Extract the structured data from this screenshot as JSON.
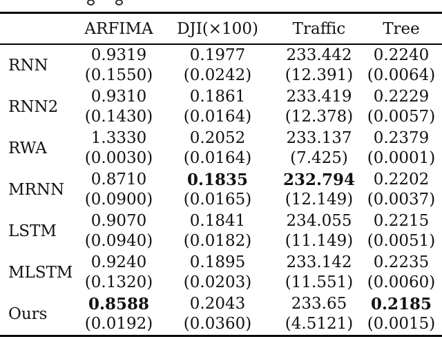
{
  "page": {
    "background_color": "#ffffff",
    "text_color": "#111111",
    "rule_color": "#000000"
  },
  "table": {
    "columns": [
      "ARFIMA",
      "DJI(×100)",
      "Traffic",
      "Tree"
    ],
    "rows": [
      {
        "label": "RNN",
        "cells": [
          {
            "value": "0.9319",
            "std": "(0.1550)",
            "bold": false
          },
          {
            "value": "0.1977",
            "std": "(0.0242)",
            "bold": false
          },
          {
            "value": "233.442",
            "std": "(12.391)",
            "bold": false
          },
          {
            "value": "0.2240",
            "std": "(0.0064)",
            "bold": false
          }
        ]
      },
      {
        "label": "RNN2",
        "cells": [
          {
            "value": "0.9310",
            "std": "(0.1430)",
            "bold": false
          },
          {
            "value": "0.1861",
            "std": "(0.0164)",
            "bold": false
          },
          {
            "value": "233.419",
            "std": "(12.378)",
            "bold": false
          },
          {
            "value": "0.2229",
            "std": "(0.0057)",
            "bold": false
          }
        ]
      },
      {
        "label": "RWA",
        "cells": [
          {
            "value": "1.3330",
            "std": "(0.0030)",
            "bold": false
          },
          {
            "value": "0.2052",
            "std": "(0.0164)",
            "bold": false
          },
          {
            "value": "233.137",
            "std": "(7.425)",
            "bold": false
          },
          {
            "value": "0.2379",
            "std": "(0.0001)",
            "bold": false
          }
        ]
      },
      {
        "label": "MRNN",
        "cells": [
          {
            "value": "0.8710",
            "std": "(0.0900)",
            "bold": false
          },
          {
            "value": "0.1835",
            "std": "(0.0165)",
            "bold": true
          },
          {
            "value": "232.794",
            "std": "(12.149)",
            "bold": true
          },
          {
            "value": "0.2202",
            "std": "(0.0037)",
            "bold": false
          }
        ]
      },
      {
        "label": "LSTM",
        "cells": [
          {
            "value": "0.9070",
            "std": "(0.0940)",
            "bold": false
          },
          {
            "value": "0.1841",
            "std": "(0.0182)",
            "bold": false
          },
          {
            "value": "234.055",
            "std": "(11.149)",
            "bold": false
          },
          {
            "value": "0.2215",
            "std": "(0.0051)",
            "bold": false
          }
        ]
      },
      {
        "label": "MLSTM",
        "cells": [
          {
            "value": "0.9240",
            "std": "(0.1320)",
            "bold": false
          },
          {
            "value": "0.1895",
            "std": "(0.0203)",
            "bold": false
          },
          {
            "value": "233.142",
            "std": "(11.551)",
            "bold": false
          },
          {
            "value": "0.2235",
            "std": "(0.0060)",
            "bold": false
          }
        ]
      },
      {
        "label": "Ours",
        "cells": [
          {
            "value": "0.8588",
            "std": "(0.0192)",
            "bold": true
          },
          {
            "value": "0.2043",
            "std": "(0.0360)",
            "bold": false
          },
          {
            "value": "233.65",
            "std": "(4.5121)",
            "bold": false
          },
          {
            "value": "0.2185",
            "std": "(0.0015)",
            "bold": true
          }
        ]
      }
    ]
  }
}
